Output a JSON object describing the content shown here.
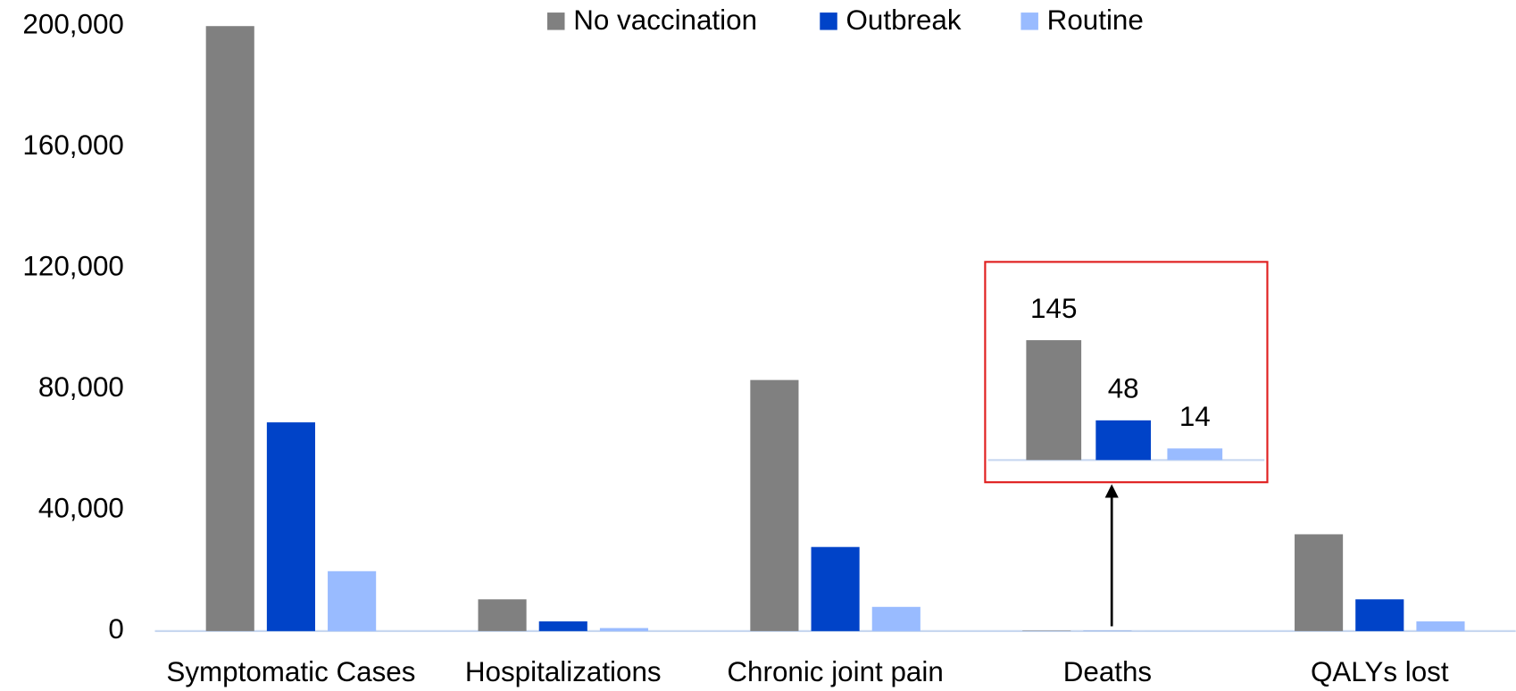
{
  "chart_data": {
    "type": "bar",
    "categories": [
      "Symptomatic Cases",
      "Hospitalizations",
      "Chronic joint pain",
      "Deaths",
      "QALYs lost"
    ],
    "series": [
      {
        "name": "No vaccination",
        "color": "#808080",
        "values": [
          200000,
          10500,
          83000,
          145,
          32000
        ]
      },
      {
        "name": "Outbreak",
        "color": "#0043c8",
        "values": [
          69000,
          3200,
          27800,
          48,
          10500
        ]
      },
      {
        "name": "Routine",
        "color": "#99bbff",
        "values": [
          19800,
          1000,
          8000,
          14,
          3200
        ]
      }
    ],
    "ylim": [
      0,
      200000
    ],
    "yticks": [
      0,
      {
        "value": 40000,
        "label": "40,000"
      },
      {
        "value": 80000,
        "label": "80,000"
      },
      {
        "value": 120000,
        "label": "120,000"
      },
      {
        "value": 160000,
        "label": "160,000"
      },
      {
        "value": 200000,
        "label": "200,000"
      }
    ],
    "grid": false,
    "legend": "top",
    "inset_category": 3
  }
}
